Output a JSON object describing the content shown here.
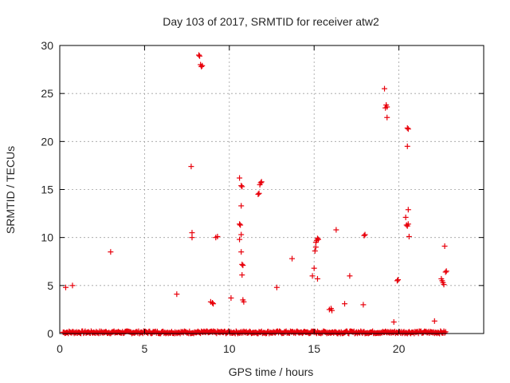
{
  "chart_data": {
    "type": "scatter",
    "title": "Day 103 of 2017, SRMTID for receiver atw2",
    "xlabel": "GPS time / hours",
    "ylabel": "SRMTID / TECUs",
    "xlim": [
      0,
      25
    ],
    "ylim": [
      0,
      30
    ],
    "xticks": [
      0,
      5,
      10,
      15,
      20
    ],
    "yticks": [
      0,
      5,
      10,
      15,
      20,
      25,
      30
    ],
    "grid": true,
    "marker": "+",
    "color": "#e8000b",
    "baseline": {
      "x_start": 0.2,
      "x_end": 22.8,
      "y_min": 0.0,
      "y_max": 0.25,
      "note_values": "dense band of points near zero across the whole day"
    },
    "points": [
      [
        0.35,
        4.8
      ],
      [
        0.75,
        5.0
      ],
      [
        3.0,
        8.5
      ],
      [
        6.9,
        4.1
      ],
      [
        7.75,
        17.4
      ],
      [
        7.8,
        10.5
      ],
      [
        7.8,
        10.0
      ],
      [
        8.2,
        29.0
      ],
      [
        8.25,
        28.9
      ],
      [
        8.3,
        28.0
      ],
      [
        8.35,
        27.8
      ],
      [
        8.4,
        27.9
      ],
      [
        8.9,
        3.3
      ],
      [
        9.0,
        3.2
      ],
      [
        9.05,
        3.1
      ],
      [
        9.2,
        10.0
      ],
      [
        9.3,
        10.1
      ],
      [
        10.1,
        3.7
      ],
      [
        10.6,
        16.2
      ],
      [
        10.6,
        11.4
      ],
      [
        10.65,
        11.3
      ],
      [
        10.6,
        9.8
      ],
      [
        10.7,
        10.3
      ],
      [
        10.7,
        15.4
      ],
      [
        10.75,
        15.3
      ],
      [
        10.7,
        13.3
      ],
      [
        10.7,
        8.5
      ],
      [
        10.75,
        7.2
      ],
      [
        10.8,
        7.1
      ],
      [
        10.75,
        6.1
      ],
      [
        10.8,
        3.5
      ],
      [
        10.85,
        3.3
      ],
      [
        11.7,
        14.5
      ],
      [
        11.75,
        14.6
      ],
      [
        11.8,
        15.5
      ],
      [
        11.85,
        15.7
      ],
      [
        11.9,
        15.8
      ],
      [
        12.8,
        4.8
      ],
      [
        13.7,
        7.8
      ],
      [
        14.9,
        6.0
      ],
      [
        15.0,
        6.8
      ],
      [
        15.05,
        8.6
      ],
      [
        15.1,
        9.0
      ],
      [
        15.1,
        9.5
      ],
      [
        15.15,
        9.7
      ],
      [
        15.2,
        9.9
      ],
      [
        15.25,
        9.8
      ],
      [
        15.2,
        5.7
      ],
      [
        15.9,
        2.5
      ],
      [
        16.0,
        2.6
      ],
      [
        16.05,
        2.4
      ],
      [
        16.3,
        10.8
      ],
      [
        16.8,
        3.1
      ],
      [
        17.1,
        6.0
      ],
      [
        17.9,
        3.0
      ],
      [
        17.95,
        10.2
      ],
      [
        18.0,
        10.3
      ],
      [
        19.15,
        25.5
      ],
      [
        19.2,
        23.5
      ],
      [
        19.25,
        23.8
      ],
      [
        19.3,
        23.6
      ],
      [
        19.3,
        22.5
      ],
      [
        19.7,
        1.2
      ],
      [
        19.9,
        5.5
      ],
      [
        19.95,
        5.6
      ],
      [
        20.4,
        12.1
      ],
      [
        20.5,
        21.4
      ],
      [
        20.55,
        21.3
      ],
      [
        20.5,
        19.5
      ],
      [
        20.45,
        11.3
      ],
      [
        20.5,
        11.2
      ],
      [
        20.55,
        11.4
      ],
      [
        20.55,
        12.9
      ],
      [
        20.6,
        10.1
      ],
      [
        22.1,
        1.3
      ],
      [
        22.5,
        5.7
      ],
      [
        22.55,
        5.5
      ],
      [
        22.6,
        5.3
      ],
      [
        22.65,
        5.1
      ],
      [
        22.7,
        9.1
      ],
      [
        22.75,
        6.4
      ],
      [
        22.8,
        6.5
      ]
    ]
  }
}
